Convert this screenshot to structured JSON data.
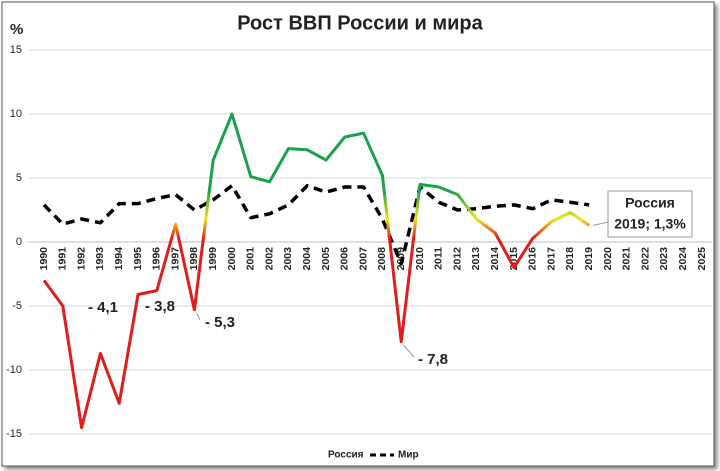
{
  "chart_data": {
    "type": "line",
    "title": "Рост ВВП России и мира",
    "y_label": "%",
    "categories": [
      "1990",
      "1991",
      "1992",
      "1993",
      "1994",
      "1995",
      "1996",
      "1997",
      "1998",
      "1999",
      "2000",
      "2001",
      "2002",
      "2003",
      "2004",
      "2005",
      "2006",
      "2007",
      "2008",
      "2009",
      "2010",
      "2011",
      "2012",
      "2013",
      "2014",
      "2015",
      "2016",
      "2017",
      "2018",
      "2019",
      "2020",
      "2021",
      "2022",
      "2023",
      "2024",
      "2025"
    ],
    "series": [
      {
        "name": "Россия",
        "colors": [
          "#e21b1b",
          "#f2e51c",
          "#19a24a"
        ],
        "values": [
          -3.0,
          -5.0,
          -14.5,
          -8.7,
          -12.6,
          -4.1,
          -3.8,
          1.4,
          -5.3,
          6.4,
          10.0,
          5.1,
          4.7,
          7.3,
          7.2,
          6.4,
          8.2,
          8.5,
          5.2,
          -7.8,
          4.5,
          4.3,
          3.7,
          1.8,
          0.7,
          -2.0,
          0.3,
          1.6,
          2.3,
          1.3,
          null,
          null,
          null,
          null,
          null,
          null
        ]
      },
      {
        "name": "Мир",
        "color": "#000000",
        "dashed": true,
        "values": [
          2.9,
          1.4,
          1.8,
          1.5,
          3.0,
          3.0,
          3.4,
          3.7,
          2.5,
          3.3,
          4.4,
          1.9,
          2.2,
          2.9,
          4.4,
          3.9,
          4.3,
          4.3,
          1.8,
          -1.7,
          4.3,
          3.1,
          2.5,
          2.6,
          2.8,
          2.9,
          2.6,
          3.3,
          3.1,
          2.9,
          null,
          null,
          null,
          null,
          null,
          null
        ]
      }
    ],
    "annotations": [
      "- 4,1",
      "- 3,8",
      "- 5,3",
      "- 7,8"
    ],
    "callout": [
      "Россия",
      "2019; 1,3%"
    ],
    "ylim": [
      -15,
      15
    ],
    "yticks": [
      -15,
      -10,
      -5,
      0,
      5,
      10,
      15
    ],
    "grid": true,
    "legend": "bottom"
  }
}
